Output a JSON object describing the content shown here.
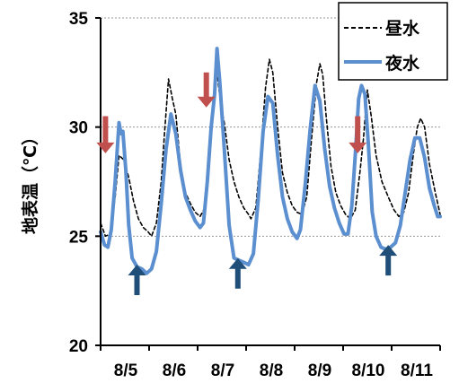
{
  "chart_data": {
    "type": "line",
    "title": "",
    "xlabel": "",
    "ylabel": "地表温（℃）",
    "ylim": [
      20,
      35
    ],
    "yticks": [
      20,
      25,
      30,
      35
    ],
    "xlim": [
      0,
      7
    ],
    "xticks": [
      {
        "x": 0,
        "label": "8/5"
      },
      {
        "x": 1,
        "label": "8/6"
      },
      {
        "x": 2,
        "label": "8/7"
      },
      {
        "x": 3,
        "label": "8/8"
      },
      {
        "x": 4,
        "label": "8/9"
      },
      {
        "x": 5,
        "label": "8/10"
      },
      {
        "x": 6,
        "label": "8/11"
      }
    ],
    "grid": "horizontal dotted",
    "legend_position": "top-right",
    "series": [
      {
        "name": "昼水",
        "style": "dashed",
        "color": "#000000",
        "points": [
          [
            0.0,
            25.6
          ],
          [
            0.1,
            25.0
          ],
          [
            0.2,
            25.1
          ],
          [
            0.3,
            26.8
          ],
          [
            0.38,
            28.7
          ],
          [
            0.48,
            28.5
          ],
          [
            0.58,
            27.7
          ],
          [
            0.68,
            26.6
          ],
          [
            0.78,
            25.8
          ],
          [
            0.88,
            25.4
          ],
          [
            0.98,
            25.2
          ],
          [
            1.05,
            25.0
          ],
          [
            1.15,
            25.6
          ],
          [
            1.25,
            27.5
          ],
          [
            1.32,
            29.8
          ],
          [
            1.4,
            32.2
          ],
          [
            1.48,
            31.3
          ],
          [
            1.55,
            30.6
          ],
          [
            1.65,
            28.2
          ],
          [
            1.75,
            27.0
          ],
          [
            1.85,
            26.5
          ],
          [
            1.95,
            26.1
          ],
          [
            2.05,
            25.9
          ],
          [
            2.15,
            26.3
          ],
          [
            2.25,
            28.5
          ],
          [
            2.32,
            31.3
          ],
          [
            2.4,
            32.5
          ],
          [
            2.48,
            31.0
          ],
          [
            2.55,
            30.2
          ],
          [
            2.65,
            28.5
          ],
          [
            2.75,
            27.5
          ],
          [
            2.85,
            26.8
          ],
          [
            2.95,
            26.3
          ],
          [
            3.05,
            26.0
          ],
          [
            3.1,
            25.8
          ],
          [
            3.2,
            26.3
          ],
          [
            3.3,
            28.8
          ],
          [
            3.4,
            31.8
          ],
          [
            3.48,
            33.1
          ],
          [
            3.55,
            32.5
          ],
          [
            3.65,
            30.0
          ],
          [
            3.75,
            27.9
          ],
          [
            3.85,
            27.0
          ],
          [
            3.95,
            26.4
          ],
          [
            4.05,
            26.1
          ],
          [
            4.15,
            26.0
          ],
          [
            4.25,
            26.8
          ],
          [
            4.35,
            29.5
          ],
          [
            4.45,
            32.0
          ],
          [
            4.52,
            32.9
          ],
          [
            4.58,
            32.4
          ],
          [
            4.65,
            30.5
          ],
          [
            4.75,
            28.2
          ],
          [
            4.85,
            27.0
          ],
          [
            4.95,
            26.4
          ],
          [
            5.05,
            26.0
          ],
          [
            5.15,
            25.8
          ],
          [
            5.25,
            26.2
          ],
          [
            5.35,
            28.0
          ],
          [
            5.42,
            29.5
          ],
          [
            5.5,
            31.7
          ],
          [
            5.58,
            30.5
          ],
          [
            5.68,
            28.7
          ],
          [
            5.8,
            27.5
          ],
          [
            5.95,
            26.7
          ],
          [
            6.05,
            26.2
          ],
          [
            6.15,
            25.9
          ],
          [
            6.25,
            26.1
          ],
          [
            6.35,
            27.0
          ],
          [
            6.45,
            28.8
          ],
          [
            6.53,
            30.0
          ],
          [
            6.6,
            30.4
          ],
          [
            6.68,
            30.0
          ],
          [
            6.78,
            28.3
          ],
          [
            6.9,
            27.0
          ],
          [
            7.0,
            26.0
          ]
        ]
      },
      {
        "name": "夜水",
        "style": "solid",
        "color": "#5b8fcf",
        "points": [
          [
            0.0,
            25.2
          ],
          [
            0.08,
            24.6
          ],
          [
            0.15,
            24.5
          ],
          [
            0.22,
            25.3
          ],
          [
            0.3,
            27.5
          ],
          [
            0.38,
            30.2
          ],
          [
            0.42,
            29.7
          ],
          [
            0.46,
            29.8
          ],
          [
            0.52,
            28.0
          ],
          [
            0.58,
            25.5
          ],
          [
            0.65,
            24.0
          ],
          [
            0.75,
            23.6
          ],
          [
            0.85,
            23.5
          ],
          [
            0.95,
            23.3
          ],
          [
            1.05,
            23.5
          ],
          [
            1.15,
            24.3
          ],
          [
            1.25,
            26.5
          ],
          [
            1.35,
            29.0
          ],
          [
            1.45,
            30.6
          ],
          [
            1.55,
            29.7
          ],
          [
            1.65,
            28.0
          ],
          [
            1.75,
            26.8
          ],
          [
            1.85,
            26.2
          ],
          [
            1.95,
            25.7
          ],
          [
            2.05,
            25.4
          ],
          [
            2.12,
            25.6
          ],
          [
            2.2,
            27.5
          ],
          [
            2.28,
            30.0
          ],
          [
            2.35,
            31.5
          ],
          [
            2.4,
            33.6
          ],
          [
            2.46,
            32.0
          ],
          [
            2.55,
            29.0
          ],
          [
            2.65,
            25.5
          ],
          [
            2.75,
            24.0
          ],
          [
            2.85,
            23.9
          ],
          [
            2.95,
            23.8
          ],
          [
            3.05,
            23.7
          ],
          [
            3.15,
            24.2
          ],
          [
            3.25,
            26.7
          ],
          [
            3.35,
            29.8
          ],
          [
            3.45,
            31.4
          ],
          [
            3.55,
            31.1
          ],
          [
            3.65,
            28.7
          ],
          [
            3.75,
            26.8
          ],
          [
            3.85,
            25.8
          ],
          [
            3.95,
            25.2
          ],
          [
            4.05,
            24.9
          ],
          [
            4.12,
            25.3
          ],
          [
            4.22,
            27.4
          ],
          [
            4.32,
            29.9
          ],
          [
            4.42,
            31.9
          ],
          [
            4.52,
            31.2
          ],
          [
            4.62,
            29.0
          ],
          [
            4.72,
            27.3
          ],
          [
            4.82,
            26.3
          ],
          [
            4.92,
            25.6
          ],
          [
            5.02,
            25.1
          ],
          [
            5.1,
            25.1
          ],
          [
            5.18,
            26.4
          ],
          [
            5.25,
            28.7
          ],
          [
            5.32,
            31.3
          ],
          [
            5.38,
            31.9
          ],
          [
            5.45,
            31.5
          ],
          [
            5.52,
            29.2
          ],
          [
            5.6,
            26.1
          ],
          [
            5.68,
            25.0
          ],
          [
            5.78,
            24.5
          ],
          [
            5.88,
            24.4
          ],
          [
            5.98,
            24.5
          ],
          [
            6.08,
            24.7
          ],
          [
            6.18,
            25.5
          ],
          [
            6.28,
            27.0
          ],
          [
            6.38,
            28.5
          ],
          [
            6.48,
            29.5
          ],
          [
            6.58,
            29.5
          ],
          [
            6.68,
            28.6
          ],
          [
            6.78,
            27.2
          ],
          [
            6.88,
            26.4
          ],
          [
            6.95,
            25.9
          ],
          [
            7.0,
            25.9
          ]
        ]
      }
    ],
    "annotations": [
      {
        "kind": "arrow-down",
        "color": "#c0504d",
        "x": 0.1,
        "y_top": 30.5,
        "y_bottom": 28.8
      },
      {
        "kind": "arrow-up",
        "color": "#1f4e79",
        "x": 0.75,
        "y_top": 23.7,
        "y_bottom": 22.3
      },
      {
        "kind": "arrow-down",
        "color": "#c0504d",
        "x": 2.18,
        "y_top": 32.5,
        "y_bottom": 30.9
      },
      {
        "kind": "arrow-up",
        "color": "#1f4e79",
        "x": 2.83,
        "y_top": 24.0,
        "y_bottom": 22.6
      },
      {
        "kind": "arrow-down",
        "color": "#c0504d",
        "x": 5.3,
        "y_top": 30.5,
        "y_bottom": 28.8
      },
      {
        "kind": "arrow-up",
        "color": "#1f4e79",
        "x": 5.93,
        "y_top": 24.6,
        "y_bottom": 23.2
      }
    ]
  }
}
